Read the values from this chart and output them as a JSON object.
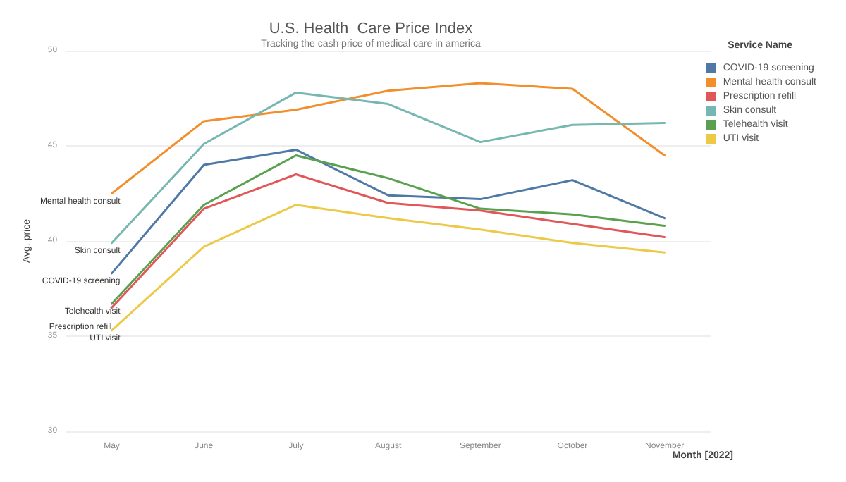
{
  "chart_data": {
    "type": "line",
    "title": "U.S. Health  Care Price Index",
    "subtitle": "Tracking the cash price of medical care in america",
    "xlabel": "Month [2022]",
    "ylabel": "Avg. price",
    "legend_title": "Service Name",
    "categories": [
      "May",
      "June",
      "July",
      "August",
      "September",
      "October",
      "November"
    ],
    "series": [
      {
        "name": "COVID-19 screening",
        "color": "#4e79a7",
        "values": [
          38.3,
          44.0,
          44.8,
          42.4,
          42.2,
          43.2,
          41.2
        ]
      },
      {
        "name": "Mental health consult",
        "color": "#f28e2b",
        "values": [
          42.5,
          46.3,
          46.9,
          47.9,
          48.3,
          48.0,
          44.5
        ]
      },
      {
        "name": "Prescription refill",
        "color": "#e15759",
        "values": [
          36.5,
          41.7,
          43.5,
          42.0,
          41.6,
          40.9,
          40.2
        ]
      },
      {
        "name": "Skin consult",
        "color": "#76b7b2",
        "values": [
          39.9,
          45.1,
          47.8,
          47.2,
          45.2,
          46.1,
          46.2
        ]
      },
      {
        "name": "Telehealth visit",
        "color": "#59a14f",
        "values": [
          36.7,
          41.9,
          44.5,
          43.3,
          41.7,
          41.4,
          40.8
        ]
      },
      {
        "name": "UTI visit",
        "color": "#edc948",
        "values": [
          35.3,
          39.7,
          41.9,
          41.2,
          40.6,
          39.9,
          39.4
        ]
      }
    ],
    "ylim": [
      30,
      50
    ],
    "yticks": [
      30,
      35,
      40,
      45,
      50
    ],
    "grid": "y",
    "legend": "top right",
    "marker": "none",
    "line_style": "solid"
  }
}
